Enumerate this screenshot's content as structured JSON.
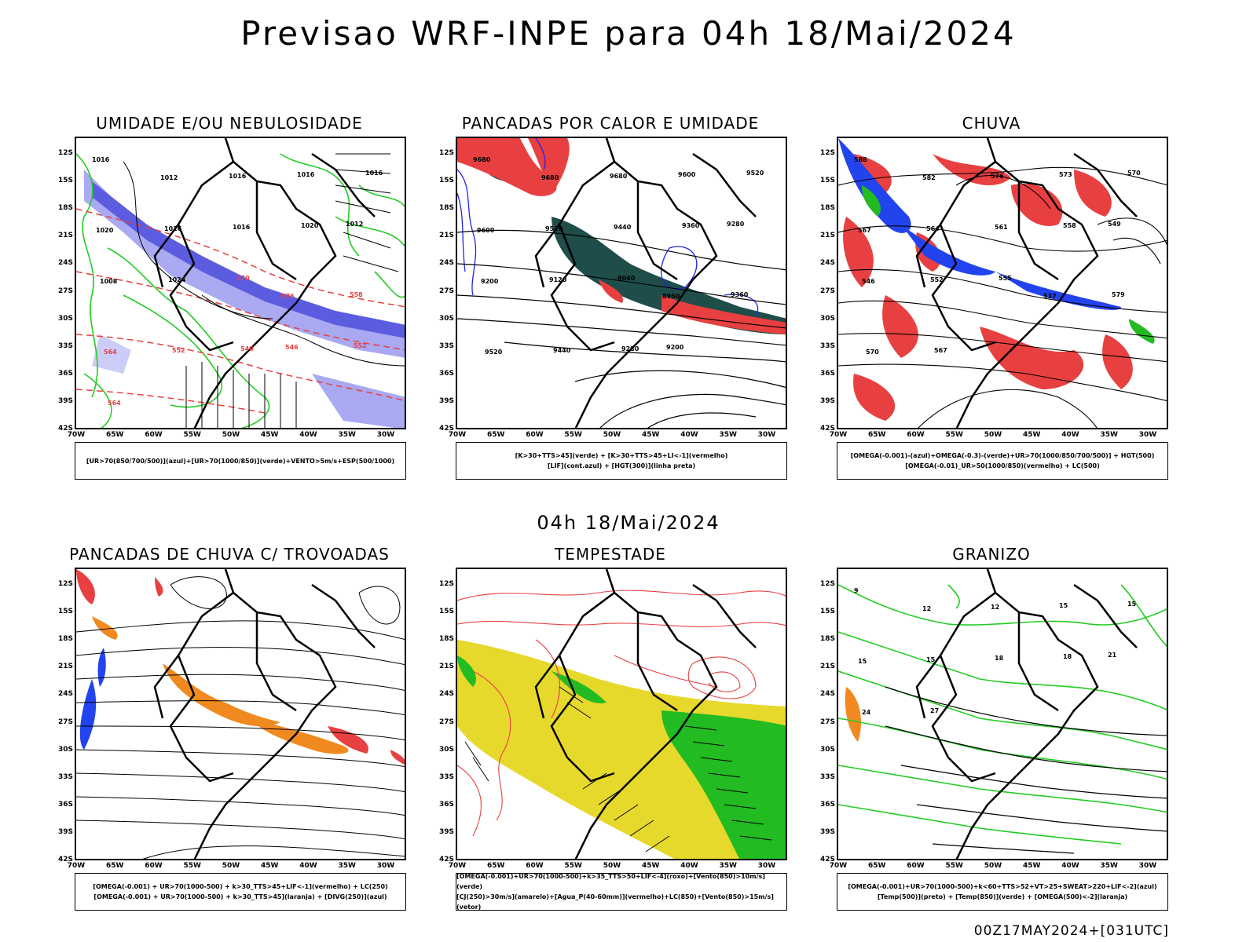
{
  "header": {
    "title": "Previsao WRF-INPE  para 04h 18/Mai/2024"
  },
  "mid_title": "04h 18/Mai/2024",
  "footer": "00Z17MAY2024+[031UTC]",
  "axes": {
    "lat_labels": [
      "12S",
      "15S",
      "18S",
      "21S",
      "24S",
      "27S",
      "30S",
      "33S",
      "36S",
      "39S",
      "42S"
    ],
    "lon_labels": [
      "70W",
      "65W",
      "60W",
      "55W",
      "50W",
      "45W",
      "40W",
      "35W",
      "30W"
    ]
  },
  "panels": [
    {
      "id": "umidade",
      "title": "UMIDADE E/OU NEBULOSIDADE",
      "legend": [
        "[UR>70(850/700/500)](azul)+[UR>70(1000/850)](verde)+VENTO>5m/s+ESP(500/1000)"
      ]
    },
    {
      "id": "pancadas-calor",
      "title": "PANCADAS POR CALOR E UMIDADE",
      "legend": [
        "[K>30+TTS>45](verde)  +  [K>30+TTS>45+LI<-1](vermelho)",
        "[LIF](cont.azul)  +  [HGT(300)](linha preta)"
      ]
    },
    {
      "id": "chuva",
      "title": "CHUVA",
      "legend": [
        "[OMEGA(-0.001)-(azul)+OMEGA(-0.3)-(verde)+UR>70(1000/850/700/500)]  +  HGT(500)",
        "[OMEGA(-0.01)_UR>50(1000/850)(vermelho)  +  LC(500)"
      ]
    },
    {
      "id": "trovoadas",
      "title": "PANCADAS DE CHUVA C/ TROVOADAS",
      "legend": [
        "[OMEGA(-0.001)  +  UR>70(1000-500)  +  k>30_TTS>45+LIF<-1](vermelho)  +  LC(250)",
        "[OMEGA(-0.001)  +  UR>70(1000-500)  +  k>30_TTS>45](laranja)  +  [DIVG(250)](azul)"
      ]
    },
    {
      "id": "tempestade",
      "title": "TEMPESTADE",
      "legend": [
        "[OMEGA(-0.001)+UR>70(1000-500)+k>35_TTS>50+LIF<-4](roxo)+[Vento(850)>10m/s](verde)",
        "[CJ(250)>30m/s](amarelo)+[Agua_P(40-60mm)](vermelho)+LC(850)+[Vento(850)>15m/s](vetor)"
      ]
    },
    {
      "id": "granizo",
      "title": "GRANIZO",
      "legend": [
        "[OMEGA(-0.001)+UR>70(1000-500)+k<60+TTS>52+VT>25+SWEAT>220+LIF<-2](azul)",
        "[Temp(500)](preto)  +  [Temp(850)](verde)  +  [OMEGA(500)<-2](laranja)"
      ]
    }
  ],
  "contour_labels": {
    "umidade": [
      "1016",
      "1012",
      "1016",
      "1016",
      "1016",
      "1020",
      "1016",
      "1016",
      "1020",
      "1012",
      "1008",
      "1024",
      "570",
      "576",
      "558",
      "564",
      "552",
      "540",
      "546",
      "552",
      "564"
    ],
    "pancadas-calor": [
      "9680",
      "9680",
      "9680",
      "9600",
      "9520",
      "9600",
      "9520",
      "9440",
      "9360",
      "9280",
      "9200",
      "9120",
      "9040",
      "8960",
      "9360",
      "9520",
      "9440",
      "9280",
      "9200"
    ],
    "chuva": [
      "588",
      "582",
      "576",
      "573",
      "570",
      "567",
      "564",
      "561",
      "558",
      "549",
      "546",
      "552",
      "555",
      "537",
      "579",
      "570",
      "567"
    ],
    "granizo": [
      "9",
      "12",
      "12",
      "15",
      "15",
      "15",
      "15",
      "18",
      "18",
      "21",
      "24",
      "27"
    ]
  }
}
